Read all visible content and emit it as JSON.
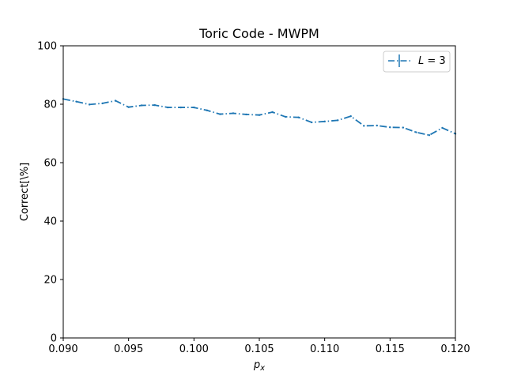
{
  "chart_data": {
    "type": "line",
    "title": "Toric Code - MWPM",
    "xlabel_main": "p",
    "xlabel_sub": "x",
    "ylabel": "Correct[\\%]",
    "xlim": [
      0.09,
      0.12
    ],
    "ylim": [
      0,
      100
    ],
    "xticks": [
      "0.090",
      "0.095",
      "0.100",
      "0.105",
      "0.110",
      "0.115",
      "0.120"
    ],
    "xtick_values": [
      0.09,
      0.095,
      0.1,
      0.105,
      0.11,
      0.115,
      0.12
    ],
    "yticks": [
      "0",
      "20",
      "40",
      "60",
      "80",
      "100"
    ],
    "ytick_values": [
      0,
      20,
      40,
      60,
      80,
      100
    ],
    "legend_position": "top-right",
    "grid": false,
    "series": [
      {
        "name": "L = 3",
        "legend_italic": "L",
        "legend_rest": " = 3",
        "color": "#1f77b4",
        "line_style": "dash-dot",
        "x": [
          0.09,
          0.091,
          0.092,
          0.093,
          0.094,
          0.095,
          0.096,
          0.097,
          0.098,
          0.099,
          0.1,
          0.101,
          0.102,
          0.103,
          0.104,
          0.105,
          0.106,
          0.107,
          0.108,
          0.109,
          0.11,
          0.111,
          0.112,
          0.113,
          0.114,
          0.115,
          0.116,
          0.117,
          0.118,
          0.119,
          0.12
        ],
        "y": [
          81.8,
          80.9,
          79.9,
          80.3,
          81.2,
          79.0,
          79.6,
          79.7,
          78.9,
          78.9,
          78.9,
          77.9,
          76.6,
          76.9,
          76.5,
          76.3,
          77.3,
          75.7,
          75.5,
          73.8,
          74.1,
          74.5,
          75.9,
          72.6,
          72.7,
          72.1,
          72.0,
          70.4,
          69.4,
          71.9,
          69.9
        ]
      }
    ]
  }
}
